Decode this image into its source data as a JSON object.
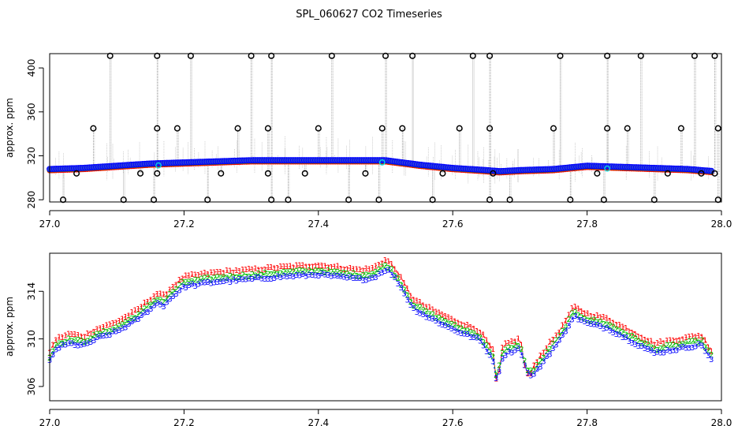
{
  "title": "SPL_060627  CO2 Timeseries",
  "chart_data": [
    {
      "type": "scatter",
      "xlabel": "",
      "ylabel": "approx. ppm",
      "xlim": [
        27.0,
        28.0
      ],
      "ylim": [
        278,
        413
      ],
      "x_ticks": [
        27.0,
        27.2,
        27.4,
        27.6,
        27.8,
        28.0
      ],
      "x_tick_labels": [
        "27.0",
        "27.2",
        "27.4",
        "27.6",
        "27.8",
        "28.0"
      ],
      "y_ticks": [
        280,
        320,
        360,
        400
      ],
      "y_tick_labels": [
        "280",
        "320",
        "360",
        "400"
      ],
      "baseline_knots": {
        "x": [
          27.0,
          27.05,
          27.1,
          27.15,
          27.2,
          27.3,
          27.4,
          27.5,
          27.55,
          27.6,
          27.65,
          27.67,
          27.7,
          27.75,
          27.8,
          27.85,
          27.9,
          27.95,
          27.99
        ],
        "y": [
          308,
          309,
          311,
          313,
          314,
          316,
          316,
          316,
          312,
          309,
          307,
          306,
          307,
          308,
          311,
          310,
          309,
          308,
          306
        ]
      },
      "spikes_high": [
        27.09,
        27.16,
        27.21,
        27.3,
        27.33,
        27.42,
        27.5,
        27.54,
        27.63,
        27.655,
        27.76,
        27.83,
        27.88,
        27.96,
        27.99
      ],
      "spikes_mid": [
        27.065,
        27.16,
        27.19,
        27.28,
        27.325,
        27.4,
        27.495,
        27.525,
        27.61,
        27.655,
        27.75,
        27.83,
        27.86,
        27.94,
        27.995
      ],
      "spikes_low": [
        27.02,
        27.11,
        27.155,
        27.235,
        27.33,
        27.355,
        27.445,
        27.49,
        27.57,
        27.655,
        27.685,
        27.775,
        27.825,
        27.9,
        27.995
      ],
      "spikes_near": [
        27.04,
        27.135,
        27.16,
        27.255,
        27.325,
        27.38,
        27.47,
        27.585,
        27.66,
        27.815,
        27.92,
        27.97,
        27.99
      ],
      "spike_values": {
        "high": 411,
        "mid": 345,
        "low": 280,
        "near": 304
      },
      "series_colors": {
        "s1": "#ff0000",
        "s2": "#00c000",
        "s3": "#0000ff",
        "fill": "#2a40d8",
        "spike": "#888888",
        "cyan": "#00e0e0"
      }
    },
    {
      "type": "scatter",
      "xlabel": "",
      "ylabel": "approx. ppm",
      "xlim": [
        27.0,
        28.0
      ],
      "ylim": [
        304.8,
        317.2
      ],
      "x_ticks": [
        27.0,
        27.2,
        27.4,
        27.6,
        27.8,
        28.0
      ],
      "x_tick_labels": [
        "27.0",
        "27.2",
        "27.4",
        "27.6",
        "27.8",
        "28.0"
      ],
      "y_ticks": [
        306,
        310,
        314
      ],
      "y_tick_labels": [
        "306",
        "310",
        "314"
      ],
      "series_markers": [
        "1",
        "2",
        "3"
      ],
      "series_colors": [
        "#ff0000",
        "#00c000",
        "#0000ff"
      ],
      "knots": {
        "x": [
          27.0,
          27.01,
          27.03,
          27.05,
          27.07,
          27.1,
          27.13,
          27.16,
          27.17,
          27.18,
          27.2,
          27.25,
          27.3,
          27.34,
          27.4,
          27.46,
          27.48,
          27.5,
          27.505,
          27.52,
          27.54,
          27.56,
          27.6,
          27.64,
          27.66,
          27.665,
          27.675,
          27.69,
          27.7,
          27.71,
          27.72,
          27.74,
          27.76,
          27.78,
          27.8,
          27.83,
          27.86,
          27.9,
          27.94,
          27.97,
          27.99
        ],
        "y": [
          308.5,
          309.6,
          310.0,
          309.8,
          310.4,
          311.0,
          312.0,
          313.4,
          313.2,
          313.8,
          314.8,
          315.2,
          315.4,
          315.6,
          315.8,
          315.4,
          315.5,
          316.2,
          316.1,
          315.0,
          313.0,
          312.3,
          311.2,
          310.3,
          308.6,
          306.8,
          309.0,
          309.4,
          309.6,
          307.5,
          307.3,
          308.9,
          310.3,
          312.3,
          311.7,
          311.3,
          310.4,
          309.2,
          309.6,
          309.9,
          308.2
        ]
      }
    }
  ]
}
